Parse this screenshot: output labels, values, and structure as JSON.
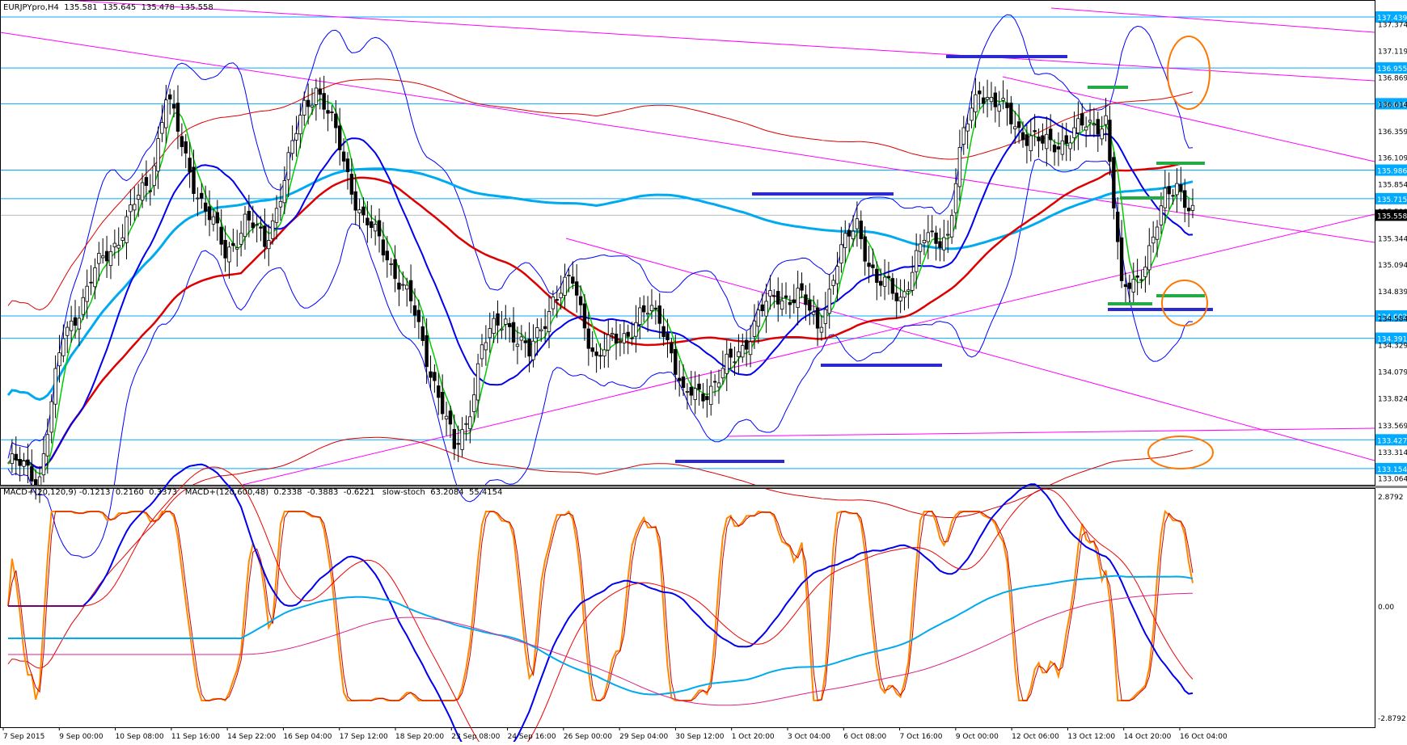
{
  "chart_data": {
    "type": "candlestick",
    "symbol_header": "EURJPYpro,H4  135.581  135.645  135.478  135.558",
    "indicator_header": "MACD+(20,120,9) -0.1213  0.2160  0.3373   MACD+(120,600,48)  0.2338  -0.3883  -0.6221   slow-stoch  63.2084  55.4154",
    "price_axis": {
      "ylim": [
        133.0,
        137.6
      ],
      "ticks": [
        "137.374",
        "137.119",
        "136.869",
        "136.614",
        "136.359",
        "136.109",
        "135.854",
        "135.599",
        "135.344",
        "135.094",
        "134.839",
        "134.584",
        "134.329",
        "134.079",
        "133.824",
        "133.569",
        "133.314",
        "133.064"
      ]
    },
    "indicator_axis": {
      "ticks": [
        "2.8792",
        "0.00",
        "-2.8792"
      ]
    },
    "current_price": "135.558",
    "horizontal_levels": [
      {
        "value": 137.439,
        "label": "137.439"
      },
      {
        "value": 136.955,
        "label": "136.955"
      },
      {
        "value": 136.616,
        "label": "136.616"
      },
      {
        "value": 135.986,
        "label": "135.986"
      },
      {
        "value": 135.715,
        "label": "135.715"
      },
      {
        "value": 134.602,
        "label": "134.602"
      },
      {
        "value": 134.391,
        "label": "134.391"
      },
      {
        "value": 133.427,
        "label": "133.427"
      },
      {
        "value": 133.154,
        "label": "133.154"
      }
    ],
    "x_ticks": [
      "7 Sep 2015",
      "9 Sep 00:00",
      "10 Sep 08:00",
      "11 Sep 16:00",
      "14 Sep 22:00",
      "16 Sep 04:00",
      "17 Sep 12:00",
      "18 Sep 20:00",
      "23 Sep 08:00",
      "24 Sep 16:00",
      "26 Sep 00:00",
      "29 Sep 04:00",
      "30 Sep 12:00",
      "1 Oct 20:00",
      "3 Oct 04:00",
      "6 Oct 08:00",
      "7 Oct 16:00",
      "9 Oct 00:00",
      "12 Oct 06:00",
      "13 Oct 12:00",
      "14 Oct 20:00",
      "16 Oct 04:00"
    ],
    "close_anchors": [
      [
        0,
        133.2
      ],
      [
        8,
        133.1
      ],
      [
        14,
        134.4
      ],
      [
        22,
        135.0
      ],
      [
        30,
        135.5
      ],
      [
        36,
        135.9
      ],
      [
        40,
        136.7
      ],
      [
        44,
        136.2
      ],
      [
        50,
        135.6
      ],
      [
        55,
        135.2
      ],
      [
        60,
        135.5
      ],
      [
        65,
        135.3
      ],
      [
        70,
        135.9
      ],
      [
        75,
        136.6
      ],
      [
        78,
        136.8
      ],
      [
        84,
        136.2
      ],
      [
        90,
        135.5
      ],
      [
        96,
        135.2
      ],
      [
        102,
        134.7
      ],
      [
        108,
        134.0
      ],
      [
        113,
        133.3
      ],
      [
        116,
        133.6
      ],
      [
        120,
        134.3
      ],
      [
        126,
        134.6
      ],
      [
        132,
        134.2
      ],
      [
        138,
        134.8
      ],
      [
        143,
        134.9
      ],
      [
        149,
        134.2
      ],
      [
        155,
        134.4
      ],
      [
        160,
        134.6
      ],
      [
        165,
        134.6
      ],
      [
        168,
        134.3
      ],
      [
        171,
        133.8
      ],
      [
        176,
        133.9
      ],
      [
        180,
        134.0
      ],
      [
        184,
        134.2
      ],
      [
        190,
        134.6
      ],
      [
        195,
        134.8
      ],
      [
        200,
        134.8
      ],
      [
        205,
        134.5
      ],
      [
        210,
        135.1
      ],
      [
        215,
        135.5
      ],
      [
        220,
        134.9
      ],
      [
        226,
        134.8
      ],
      [
        232,
        135.3
      ],
      [
        238,
        135.4
      ],
      [
        242,
        136.3
      ],
      [
        246,
        136.8
      ],
      [
        250,
        136.6
      ],
      [
        256,
        136.4
      ],
      [
        262,
        136.2
      ],
      [
        268,
        136.3
      ],
      [
        274,
        136.4
      ],
      [
        278,
        136.5
      ],
      [
        282,
        134.8
      ],
      [
        286,
        135.0
      ],
      [
        290,
        135.3
      ],
      [
        293,
        135.7
      ],
      [
        296,
        135.9
      ],
      [
        300,
        135.56
      ]
    ],
    "levels_fine_sample": "shape-only",
    "series": [
      {
        "name": "",
        "kind": "sma-fast",
        "color": "#00cc00"
      },
      {
        "name": "",
        "kind": "sma-mid",
        "color": "#0000ff"
      },
      {
        "name": "",
        "kind": "sma-slow",
        "color": "#dd0000"
      },
      {
        "name": "",
        "kind": "sma-long",
        "color": "#00aaff"
      }
    ],
    "colors": {
      "bull": "#ffffff",
      "bear": "#000000",
      "bands": "#0000ff",
      "envelope": "#dd0000",
      "trend": "#ff00ff",
      "level": "#00aaff",
      "highlight": "#ff7700",
      "support": "#2a2ad0",
      "resist": "#22aa44",
      "stoch": "#ff8800"
    }
  }
}
